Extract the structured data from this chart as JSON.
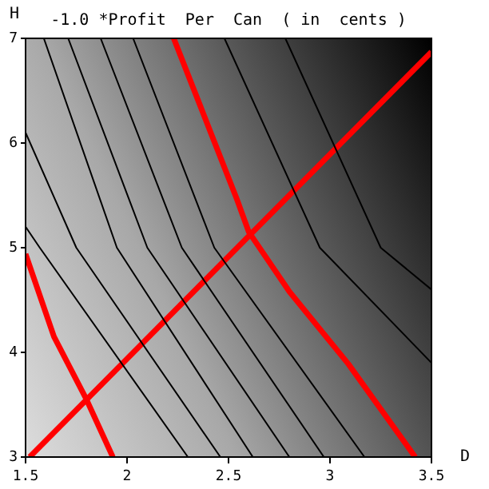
{
  "chart_data": {
    "type": "line",
    "title": "-1.0 *Profit  Per  Can  ( in  cents )",
    "xlabel": "D",
    "ylabel": "H",
    "xlim": [
      1.5,
      3.5
    ],
    "xticks": [
      {
        "value": 1.5,
        "label": "1.5"
      },
      2,
      {
        "value": 2.5,
        "label": "2.5"
      },
      3,
      {
        "value": 3.5,
        "label": "3.5"
      }
    ],
    "ylim": [
      3,
      7
    ],
    "yticks": [
      3,
      4,
      5,
      6,
      7
    ],
    "grid": false,
    "legend": false,
    "marker": "none",
    "line_style": "solid",
    "series": [
      {
        "color": "#000000",
        "x": [
          1.5,
          1.57,
          2.3
        ],
        "values": [
          5.2,
          5,
          3
        ]
      },
      {
        "color": "#000000",
        "x": [
          1.5,
          1.75,
          2.46
        ],
        "values": [
          6.1,
          5,
          3
        ]
      },
      {
        "color": "#000000",
        "x": [
          1.59,
          1.95,
          2.62
        ],
        "values": [
          7,
          5,
          3
        ]
      },
      {
        "color": "#000000",
        "x": [
          1.71,
          2.1,
          2.8
        ],
        "values": [
          7,
          5,
          3
        ]
      },
      {
        "color": "#000000",
        "x": [
          1.87,
          2.27,
          2.97
        ],
        "values": [
          7,
          5,
          3
        ]
      },
      {
        "color": "#000000",
        "x": [
          2.03,
          2.43,
          3.17
        ],
        "values": [
          7,
          5,
          3
        ]
      },
      {
        "color": "#000000",
        "x": [
          2.48,
          2.95,
          3.5
        ],
        "values": [
          7,
          5,
          3.9
        ]
      },
      {
        "color": "#000000",
        "x": [
          2.78,
          3.25,
          3.5
        ],
        "values": [
          7,
          5,
          4.6
        ]
      },
      {
        "color": "#ff0000",
        "x": [
          1.52,
          3.5
        ],
        "values": [
          3,
          6.87
        ]
      },
      {
        "color": "#ff0000",
        "x": [
          2.23,
          2.38,
          2.54,
          2.6,
          2.8,
          3.09,
          3.42
        ],
        "values": [
          7,
          6.26,
          5.47,
          5.15,
          4.58,
          3.89,
          3
        ]
      },
      {
        "color": "#ff0000",
        "x": [
          1.5,
          1.64,
          1.8,
          1.93
        ],
        "values": [
          4.94,
          4.15,
          3.55,
          3
        ]
      }
    ]
  }
}
